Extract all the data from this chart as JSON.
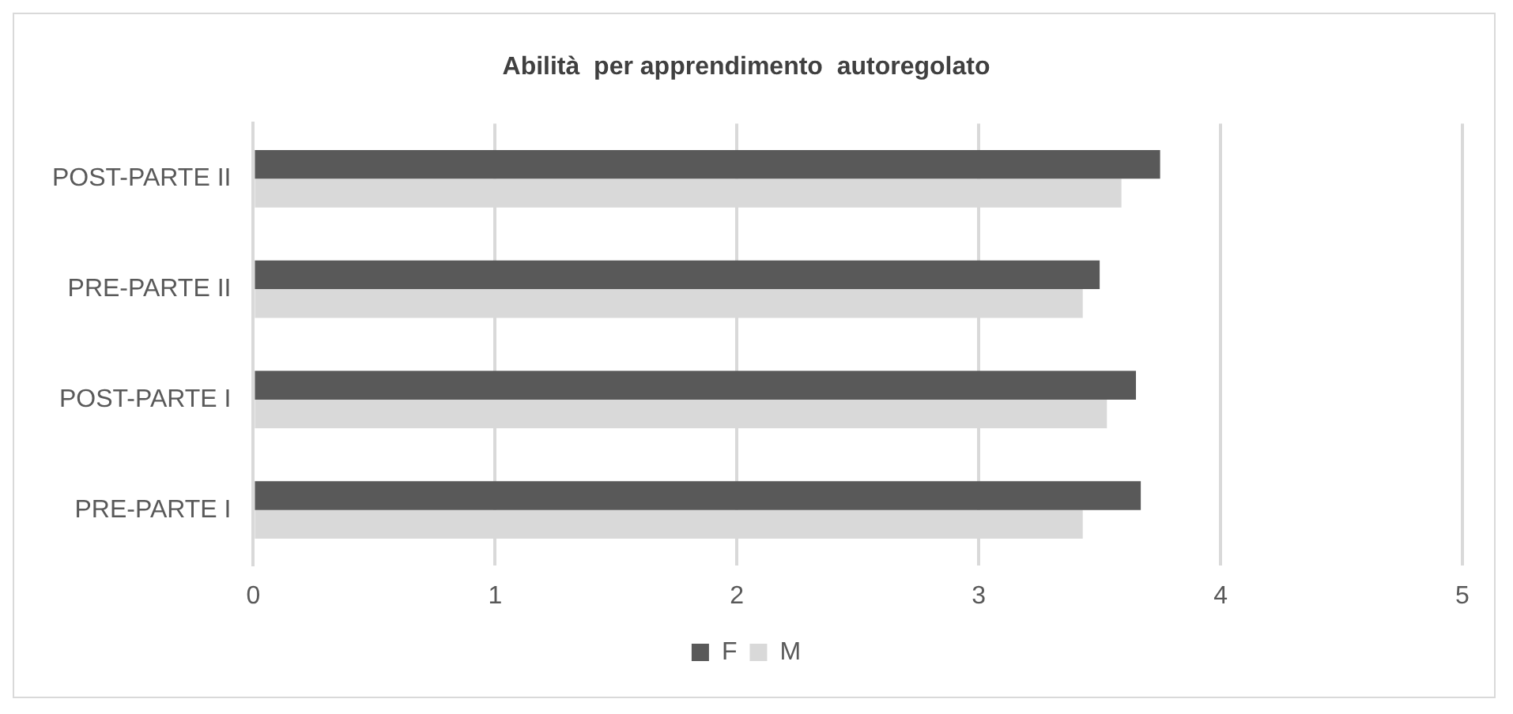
{
  "chart_data": {
    "type": "bar",
    "orientation": "horizontal",
    "title": "Abilità  per apprendimento  autoregolato",
    "categories": [
      "POST-PARTE II",
      "PRE-PARTE II",
      "POST-PARTE I",
      "PRE-PARTE I"
    ],
    "series": [
      {
        "name": "F",
        "color": "#595959",
        "values": [
          3.75,
          3.5,
          3.65,
          3.67
        ]
      },
      {
        "name": "M",
        "color": "#d9d9d9",
        "values": [
          3.59,
          3.43,
          3.53,
          3.43
        ]
      }
    ],
    "xlim": [
      0,
      5
    ],
    "xticks": [
      0,
      1,
      2,
      3,
      4,
      5
    ],
    "grid": "x",
    "legend": "bottom"
  }
}
